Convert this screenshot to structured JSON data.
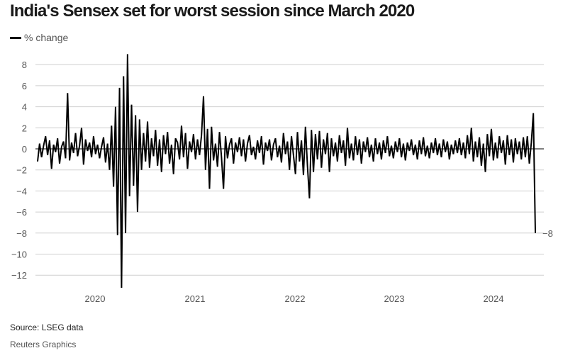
{
  "title": "India's Sensex set for worst session since March 2020",
  "source": "Source: LSEG data",
  "credit": "Reuters Graphics",
  "chart_data": {
    "type": "line",
    "title": "India's Sensex set for worst session since March 2020",
    "xlabel": "",
    "ylabel": "",
    "legend": {
      "position": "top-left",
      "entries": [
        "% change"
      ]
    },
    "x_range": [
      "2019-06",
      "2024-06"
    ],
    "x_ticks": [
      "2020",
      "2021",
      "2022",
      "2023",
      "2024"
    ],
    "ylim": [
      -13,
      9
    ],
    "y_ticks": [
      8,
      6,
      4,
      2,
      0,
      -2,
      -4,
      -6,
      -8,
      -10,
      -12
    ],
    "y_tick_labels": [
      "8",
      "6",
      "4",
      "2",
      "0",
      "−2",
      "−4",
      "−6",
      "−8",
      "−10",
      "−12"
    ],
    "grid": true,
    "end_label": "−8",
    "series": [
      {
        "name": "% change",
        "color": "#000000",
        "values": [
          -1.2,
          0.5,
          -0.8,
          0.3,
          1.2,
          -0.6,
          0.8,
          -1.9,
          0.4,
          -0.3,
          1.0,
          -1.4,
          0.2,
          0.7,
          -0.9,
          5.3,
          -1.1,
          0.6,
          -0.4,
          1.5,
          -0.7,
          0.3,
          2.0,
          -1.5,
          0.9,
          -0.2,
          0.6,
          -0.8,
          1.2,
          -0.5,
          0.4,
          -0.9,
          0.2,
          1.1,
          -1.3,
          0.5,
          -2.0,
          2.2,
          -3.6,
          4.0,
          -8.2,
          5.8,
          -13.2,
          6.9,
          -8.0,
          9.0,
          -4.5,
          4.2,
          -3.5,
          3.2,
          -6.0,
          2.8,
          -2.0,
          1.5,
          -1.2,
          2.6,
          -1.8,
          1.0,
          -0.7,
          1.8,
          -1.6,
          0.9,
          -2.2,
          1.3,
          -0.5,
          1.6,
          -1.4,
          0.4,
          -2.4,
          1.0,
          0.6,
          -1.0,
          2.2,
          -0.8,
          1.5,
          -1.9,
          0.7,
          -0.3,
          1.4,
          -1.0,
          0.9,
          -0.6,
          1.3,
          5.0,
          -2.0,
          1.9,
          -3.8,
          2.1,
          -1.1,
          0.5,
          -1.7,
          1.6,
          -0.8,
          -3.8,
          1.2,
          -0.9,
          0.4,
          1.0,
          -1.4,
          0.6,
          -0.3,
          1.1,
          -0.7,
          0.9,
          -1.2,
          0.5,
          1.3,
          -0.6,
          0.2,
          -1.0,
          0.8,
          -0.4,
          1.2,
          -1.5,
          0.6,
          -0.2,
          0.9,
          -1.1,
          0.4,
          1.0,
          -0.8,
          0.3,
          -1.3,
          1.5,
          -0.5,
          0.7,
          -2.0,
          1.2,
          -0.6,
          -2.4,
          1.6,
          -1.2,
          0.8,
          -2.5,
          2.1,
          -1.6,
          -4.7,
          1.8,
          -2.2,
          1.4,
          -1.0,
          1.7,
          -1.8,
          0.9,
          -0.5,
          1.5,
          -2.2,
          1.0,
          -0.7,
          0.6,
          -1.2,
          1.3,
          -0.4,
          0.8,
          -1.6,
          2.0,
          -0.9,
          0.5,
          -1.1,
          1.2,
          -0.6,
          0.9,
          -1.4,
          0.7,
          -0.3,
          1.1,
          -0.8,
          0.4,
          -1.2,
          1.0,
          -0.5,
          0.6,
          -1.0,
          0.8,
          -0.4,
          1.2,
          -0.7,
          0.3,
          -0.9,
          0.7,
          -0.3,
          1.0,
          -0.8,
          0.5,
          -1.1,
          0.6,
          -0.2,
          0.9,
          -0.6,
          0.4,
          -1.0,
          0.8,
          -0.5,
          1.1,
          -0.7,
          0.3,
          -0.9,
          0.6,
          -0.4,
          1.0,
          -0.6,
          0.5,
          -0.8,
          0.9,
          -0.3,
          0.7,
          -1.0,
          0.4,
          -0.5,
          0.8,
          -0.4,
          1.0,
          -0.6,
          0.6,
          -0.9,
          1.3,
          -0.5,
          2.0,
          -1.2,
          0.7,
          -0.8,
          1.1,
          -1.6,
          0.5,
          -2.2,
          1.4,
          -0.7,
          1.9,
          -1.1,
          0.6,
          -0.9,
          1.2,
          -0.4,
          0.8,
          -1.5,
          1.3,
          -0.6,
          0.9,
          -1.3,
          1.0,
          -0.5,
          0.7,
          -1.0,
          1.1,
          -0.8,
          1.2,
          -1.4,
          0.6,
          3.4,
          -8.0
        ]
      }
    ]
  }
}
